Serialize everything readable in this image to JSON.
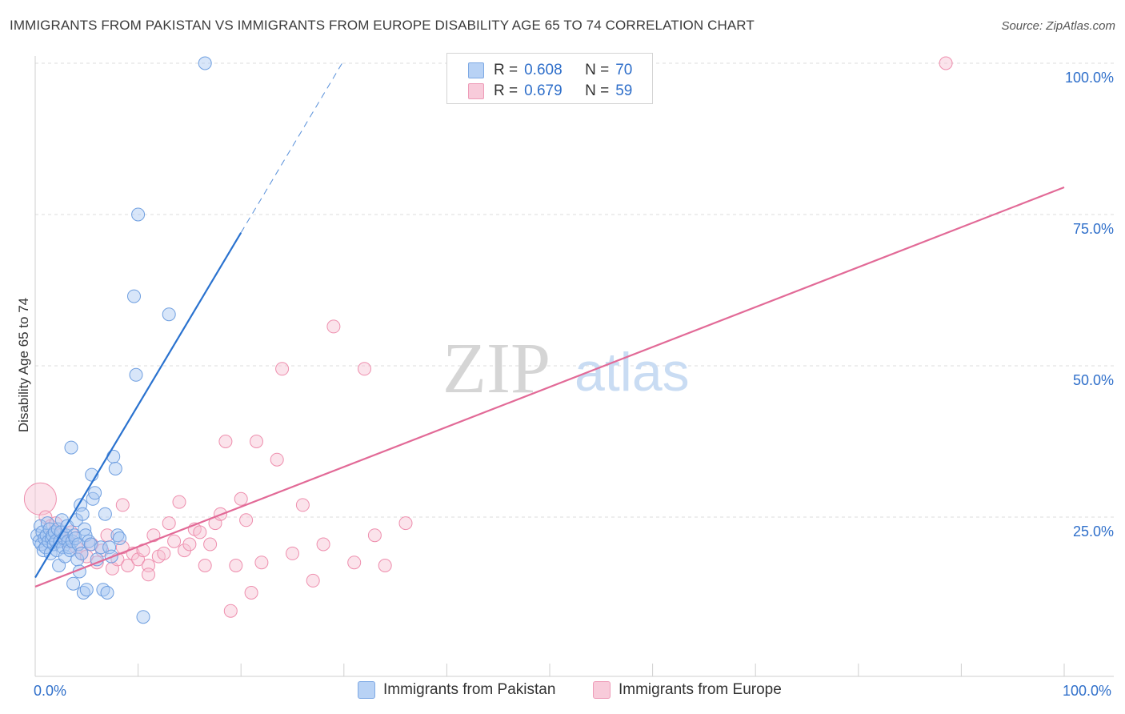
{
  "title": "IMMIGRANTS FROM PAKISTAN VS IMMIGRANTS FROM EUROPE DISABILITY AGE 65 TO 74 CORRELATION CHART",
  "source": "Source: ZipAtlas.com",
  "watermark": {
    "zip": "ZIP",
    "atlas": "atlas"
  },
  "colors": {
    "blue_fill": "#a9c8f2",
    "blue_stroke": "#6f9fe0",
    "blue_line": "#2a72cf",
    "pink_fill": "#f7c0d2",
    "pink_stroke": "#ee8fae",
    "pink_line": "#e26a97",
    "tick_text": "#2f6fca",
    "grid": "#dcdcdc"
  },
  "legend_top": [
    {
      "swatch": "blue",
      "r_label": "R =",
      "r_value": "0.608",
      "n_label": "N =",
      "n_value": "70"
    },
    {
      "swatch": "pink",
      "r_label": "R =",
      "r_value": "0.679",
      "n_label": "N =",
      "n_value": "59"
    }
  ],
  "legend_bottom": [
    {
      "swatch": "blue",
      "label": "Immigrants from Pakistan"
    },
    {
      "swatch": "pink",
      "label": "Immigrants from Europe"
    }
  ],
  "chart_data": {
    "type": "scatter",
    "title": "IMMIGRANTS FROM PAKISTAN VS IMMIGRANTS FROM EUROPE DISABILITY AGE 65 TO 74 CORRELATION CHART",
    "xlabel": "",
    "ylabel": "Disability Age 65 to 74",
    "xlim": [
      0,
      100
    ],
    "ylim": [
      0,
      102
    ],
    "x_tick_labels": [
      "0.0%",
      "100.0%"
    ],
    "y_ticks": [
      {
        "value": 25,
        "label": "25.0%"
      },
      {
        "value": 50,
        "label": "50.0%"
      },
      {
        "value": 75,
        "label": "75.0%"
      },
      {
        "value": 100,
        "label": "100.0%"
      }
    ],
    "grid": true,
    "series": [
      {
        "name": "Immigrants from Pakistan",
        "color": "blue",
        "r": 0.608,
        "n": 70,
        "trend": {
          "x0": 0,
          "y0": 15.0,
          "x1": 20.0,
          "y1": 72.0,
          "dash_to_x": 30.0
        },
        "points": [
          [
            0.2,
            22.0
          ],
          [
            0.4,
            21.0
          ],
          [
            0.5,
            23.5
          ],
          [
            0.6,
            20.5
          ],
          [
            0.7,
            22.5
          ],
          [
            0.8,
            19.5
          ],
          [
            0.9,
            21.5
          ],
          [
            1.0,
            20.0
          ],
          [
            1.1,
            22.0
          ],
          [
            1.2,
            24.0
          ],
          [
            1.3,
            21.0
          ],
          [
            1.4,
            23.0
          ],
          [
            1.5,
            19.0
          ],
          [
            1.6,
            21.5
          ],
          [
            1.7,
            22.0
          ],
          [
            1.8,
            20.5
          ],
          [
            1.9,
            22.5
          ],
          [
            2.0,
            21.0
          ],
          [
            2.1,
            19.5
          ],
          [
            2.2,
            23.0
          ],
          [
            2.3,
            17.0
          ],
          [
            2.4,
            21.0
          ],
          [
            2.5,
            22.5
          ],
          [
            2.6,
            24.5
          ],
          [
            2.7,
            20.0
          ],
          [
            2.8,
            21.5
          ],
          [
            2.9,
            18.5
          ],
          [
            3.0,
            22.0
          ],
          [
            3.1,
            23.5
          ],
          [
            3.2,
            21.0
          ],
          [
            3.3,
            20.0
          ],
          [
            3.4,
            19.5
          ],
          [
            3.5,
            36.5
          ],
          [
            3.6,
            21.0
          ],
          [
            3.7,
            14.0
          ],
          [
            3.8,
            22.0
          ],
          [
            3.9,
            21.5
          ],
          [
            4.0,
            24.5
          ],
          [
            4.1,
            18.0
          ],
          [
            4.2,
            20.5
          ],
          [
            4.3,
            16.0
          ],
          [
            4.4,
            27.0
          ],
          [
            4.5,
            19.0
          ],
          [
            4.6,
            25.5
          ],
          [
            4.7,
            12.5
          ],
          [
            4.8,
            23.0
          ],
          [
            4.9,
            22.0
          ],
          [
            5.0,
            13.0
          ],
          [
            5.2,
            21.0
          ],
          [
            5.4,
            20.5
          ],
          [
            5.5,
            32.0
          ],
          [
            5.6,
            28.0
          ],
          [
            5.8,
            29.0
          ],
          [
            6.0,
            18.0
          ],
          [
            6.4,
            20.0
          ],
          [
            6.6,
            13.0
          ],
          [
            6.8,
            25.5
          ],
          [
            7.0,
            12.5
          ],
          [
            7.2,
            20.0
          ],
          [
            7.4,
            18.5
          ],
          [
            7.6,
            35.0
          ],
          [
            7.8,
            33.0
          ],
          [
            8.0,
            22.0
          ],
          [
            8.2,
            21.5
          ],
          [
            9.6,
            61.5
          ],
          [
            9.8,
            48.5
          ],
          [
            10.0,
            75.0
          ],
          [
            10.5,
            8.5
          ],
          [
            13.0,
            58.5
          ],
          [
            16.5,
            100.0
          ]
        ]
      },
      {
        "name": "Immigrants from Europe",
        "color": "pink",
        "r": 0.679,
        "n": 59,
        "trend": {
          "x0": 0,
          "y0": 13.5,
          "x1": 100.0,
          "y1": 79.5
        },
        "points": [
          [
            0.5,
            28.0
          ],
          [
            1.0,
            25.0
          ],
          [
            1.5,
            23.5
          ],
          [
            2.0,
            24.0
          ],
          [
            2.5,
            22.0
          ],
          [
            3.0,
            21.0
          ],
          [
            3.5,
            22.5
          ],
          [
            4.0,
            20.0
          ],
          [
            4.5,
            19.0
          ],
          [
            5.0,
            18.5
          ],
          [
            5.5,
            20.5
          ],
          [
            6.0,
            17.5
          ],
          [
            6.5,
            19.5
          ],
          [
            7.0,
            22.0
          ],
          [
            7.5,
            16.5
          ],
          [
            8.0,
            18.0
          ],
          [
            8.5,
            20.0
          ],
          [
            9.0,
            17.0
          ],
          [
            9.5,
            19.0
          ],
          [
            10.0,
            18.0
          ],
          [
            10.5,
            19.5
          ],
          [
            11.0,
            17.0
          ],
          [
            11.5,
            22.0
          ],
          [
            12.0,
            18.5
          ],
          [
            12.5,
            19.0
          ],
          [
            13.0,
            24.0
          ],
          [
            13.5,
            21.0
          ],
          [
            14.0,
            27.5
          ],
          [
            14.5,
            19.5
          ],
          [
            15.0,
            20.5
          ],
          [
            15.5,
            23.0
          ],
          [
            16.0,
            22.5
          ],
          [
            16.5,
            17.0
          ],
          [
            17.0,
            20.5
          ],
          [
            17.5,
            24.0
          ],
          [
            18.0,
            25.5
          ],
          [
            18.5,
            37.5
          ],
          [
            19.0,
            9.5
          ],
          [
            19.5,
            17.0
          ],
          [
            20.0,
            28.0
          ],
          [
            20.5,
            24.5
          ],
          [
            21.0,
            12.5
          ],
          [
            21.5,
            37.5
          ],
          [
            22.0,
            17.5
          ],
          [
            23.5,
            34.5
          ],
          [
            24.0,
            49.5
          ],
          [
            25.0,
            19.0
          ],
          [
            26.0,
            27.0
          ],
          [
            27.0,
            14.5
          ],
          [
            28.0,
            20.5
          ],
          [
            29.0,
            56.5
          ],
          [
            31.0,
            17.5
          ],
          [
            32.0,
            49.5
          ],
          [
            33.0,
            22.0
          ],
          [
            34.0,
            17.0
          ],
          [
            36.0,
            24.0
          ],
          [
            8.5,
            27.0
          ],
          [
            11.0,
            15.5
          ],
          [
            88.5,
            100.0
          ]
        ]
      }
    ]
  }
}
